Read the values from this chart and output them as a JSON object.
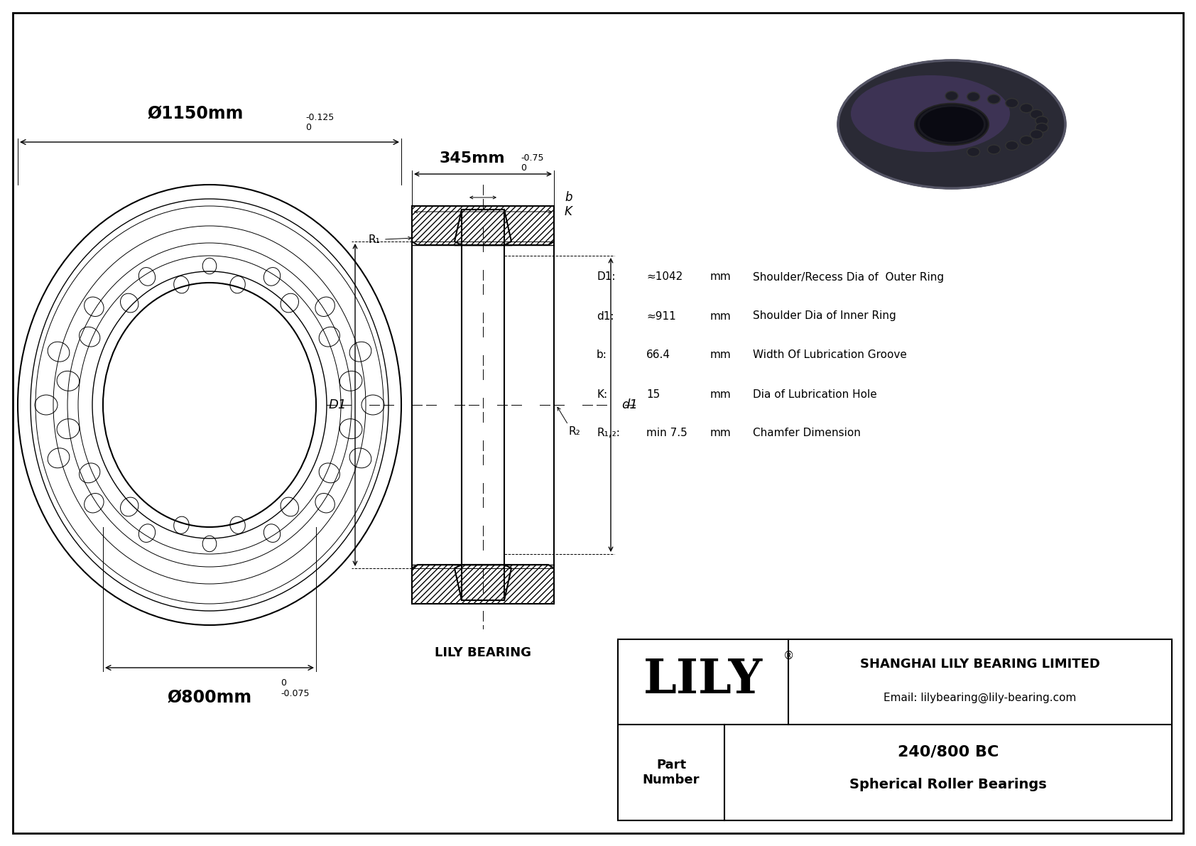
{
  "bg_color": "#ffffff",
  "line_color": "#000000",
  "outer_diameter_label": "Ø1150mm",
  "outer_tolerance_upper": "0",
  "outer_tolerance_lower": "-0.125",
  "inner_diameter_label": "Ø800mm",
  "inner_tolerance_upper": "0",
  "inner_tolerance_lower": "-0.075",
  "width_label": "345mm",
  "width_tolerance_upper": "0",
  "width_tolerance_lower": "-0.75",
  "spec_D1_label": "D1:",
  "spec_D1_value": "≈1042",
  "spec_D1_unit": "mm",
  "spec_D1_desc": "Shoulder/Recess Dia of  Outer Ring",
  "spec_d1_label": "d1:",
  "spec_d1_value": "≈911",
  "spec_d1_unit": "mm",
  "spec_d1_desc": "Shoulder Dia of Inner Ring",
  "spec_b_label": "b:",
  "spec_b_value": "66.4",
  "spec_b_unit": "mm",
  "spec_b_desc": "Width Of Lubrication Groove",
  "spec_K_label": "K:",
  "spec_K_value": "15",
  "spec_K_unit": "mm",
  "spec_K_desc": "Dia of Lubrication Hole",
  "spec_R_label": "R₁,₂:",
  "spec_R_value": "min 7.5",
  "spec_R_unit": "mm",
  "spec_R_desc": "Chamfer Dimension",
  "company_name": "SHANGHAI LILY BEARING LIMITED",
  "company_email": "Email: lilybearing@lily-bearing.com",
  "part_number": "240/800 BC",
  "part_type": "Spherical Roller Bearings",
  "lily_text": "LILY",
  "lily_registered": "®",
  "cross_section_label": "LILY BEARING"
}
